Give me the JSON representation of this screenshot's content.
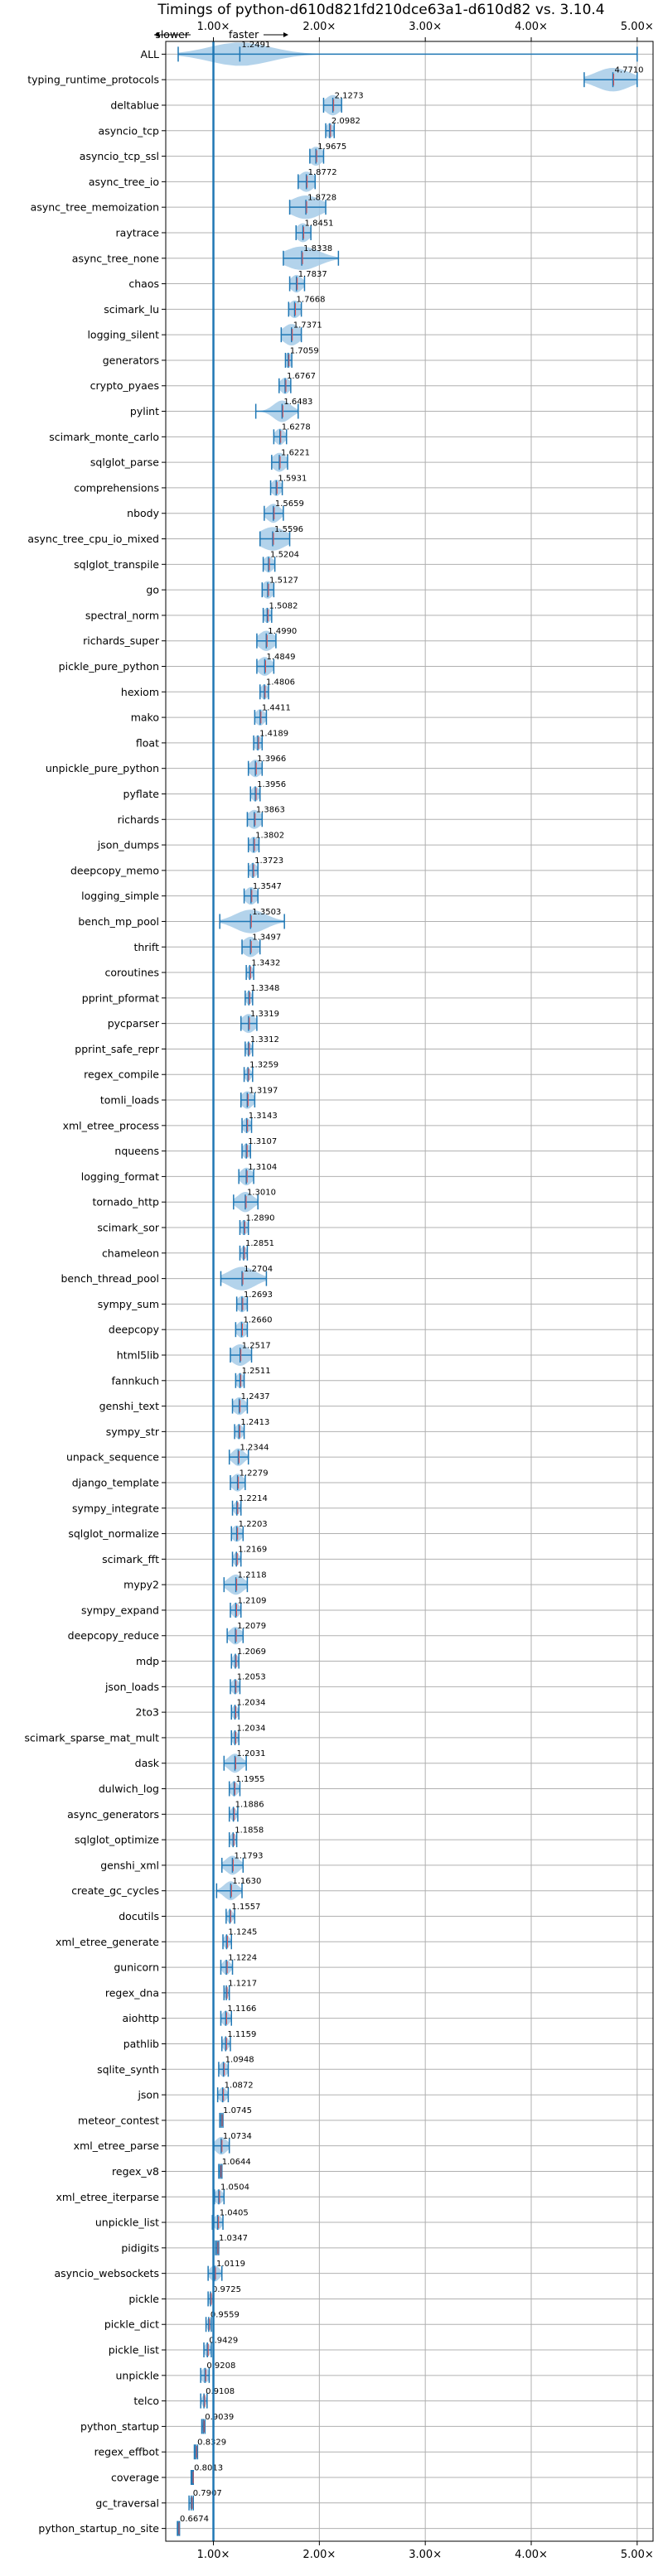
{
  "chart_data": {
    "type": "violin",
    "title": "Timings of python-d610d821fd210dce63a1-d610d82 vs. 3.10.4",
    "direction_labels": {
      "slower": "slower",
      "faster": "faster"
    },
    "xlim": [
      0.55,
      5.15
    ],
    "x_ticks": [
      1,
      2,
      3,
      4,
      5
    ],
    "x_tick_labels": [
      "1.00×",
      "2.00×",
      "3.00×",
      "4.00×",
      "5.00×"
    ],
    "x_tick_labels_top": [
      "1.00×",
      "2.00×",
      "3.00×",
      "4.00×",
      "5.00×"
    ],
    "reference_line": 1.0,
    "grid": true,
    "colors": {
      "violin": "#a6cbe8",
      "line": "#1f77b4",
      "median": "#e05252",
      "grid": "#b0b0b0"
    },
    "benchmarks": [
      {
        "name": "ALL",
        "label": "1.2491",
        "median": 1.2491,
        "min": 0.6674,
        "max": 5.0,
        "spread": 0.32
      },
      {
        "name": "typing_runtime_protocols",
        "label": "4.7710",
        "median": 4.771,
        "min": 4.5,
        "max": 5.0,
        "spread": 0.18
      },
      {
        "name": "deltablue",
        "label": "2.1273",
        "median": 2.1273,
        "min": 2.04,
        "max": 2.21,
        "spread": 0.08
      },
      {
        "name": "asyncio_tcp",
        "label": "2.0982",
        "median": 2.0982,
        "min": 2.06,
        "max": 2.14,
        "spread": 0.04
      },
      {
        "name": "asyncio_tcp_ssl",
        "label": "1.9675",
        "median": 1.9675,
        "min": 1.91,
        "max": 2.04,
        "spread": 0.07
      },
      {
        "name": "async_tree_io",
        "label": "1.8772",
        "median": 1.8772,
        "min": 1.8,
        "max": 1.96,
        "spread": 0.08
      },
      {
        "name": "async_tree_memoization",
        "label": "1.8728",
        "median": 1.8728,
        "min": 1.72,
        "max": 2.06,
        "spread": 0.16
      },
      {
        "name": "raytrace",
        "label": "1.8451",
        "median": 1.8451,
        "min": 1.78,
        "max": 1.92,
        "spread": 0.07
      },
      {
        "name": "async_tree_none",
        "label": "1.8338",
        "median": 1.8338,
        "min": 1.66,
        "max": 2.18,
        "spread": 0.18
      },
      {
        "name": "chaos",
        "label": "1.7837",
        "median": 1.7837,
        "min": 1.72,
        "max": 1.86,
        "spread": 0.06
      },
      {
        "name": "scimark_lu",
        "label": "1.7668",
        "median": 1.7668,
        "min": 1.71,
        "max": 1.83,
        "spread": 0.06
      },
      {
        "name": "logging_silent",
        "label": "1.7371",
        "median": 1.7371,
        "min": 1.64,
        "max": 1.83,
        "spread": 0.09
      },
      {
        "name": "generators",
        "label": "1.7059",
        "median": 1.7059,
        "min": 1.68,
        "max": 1.74,
        "spread": 0.04
      },
      {
        "name": "crypto_pyaes",
        "label": "1.6767",
        "median": 1.6767,
        "min": 1.62,
        "max": 1.73,
        "spread": 0.05
      },
      {
        "name": "pylint",
        "label": "1.6483",
        "median": 1.6483,
        "min": 1.4,
        "max": 1.8,
        "spread": 0.09
      },
      {
        "name": "scimark_monte_carlo",
        "label": "1.6278",
        "median": 1.6278,
        "min": 1.57,
        "max": 1.69,
        "spread": 0.05
      },
      {
        "name": "sqlglot_parse",
        "label": "1.6221",
        "median": 1.6221,
        "min": 1.55,
        "max": 1.7,
        "spread": 0.07
      },
      {
        "name": "comprehensions",
        "label": "1.5931",
        "median": 1.5931,
        "min": 1.54,
        "max": 1.65,
        "spread": 0.05
      },
      {
        "name": "nbody",
        "label": "1.5659",
        "median": 1.5659,
        "min": 1.48,
        "max": 1.66,
        "spread": 0.07
      },
      {
        "name": "async_tree_cpu_io_mixed",
        "label": "1.5596",
        "median": 1.5596,
        "min": 1.44,
        "max": 1.72,
        "spread": 0.14
      },
      {
        "name": "sqlglot_transpile",
        "label": "1.5204",
        "median": 1.5204,
        "min": 1.47,
        "max": 1.58,
        "spread": 0.05
      },
      {
        "name": "go",
        "label": "1.5127",
        "median": 1.5127,
        "min": 1.46,
        "max": 1.57,
        "spread": 0.06
      },
      {
        "name": "spectral_norm",
        "label": "1.5082",
        "median": 1.5082,
        "min": 1.47,
        "max": 1.55,
        "spread": 0.04
      },
      {
        "name": "richards_super",
        "label": "1.4990",
        "median": 1.499,
        "min": 1.41,
        "max": 1.59,
        "spread": 0.08
      },
      {
        "name": "pickle_pure_python",
        "label": "1.4849",
        "median": 1.4849,
        "min": 1.41,
        "max": 1.57,
        "spread": 0.07
      },
      {
        "name": "hexiom",
        "label": "1.4806",
        "median": 1.4806,
        "min": 1.44,
        "max": 1.52,
        "spread": 0.04
      },
      {
        "name": "mako",
        "label": "1.4411",
        "median": 1.4411,
        "min": 1.39,
        "max": 1.5,
        "spread": 0.05
      },
      {
        "name": "float",
        "label": "1.4189",
        "median": 1.4189,
        "min": 1.38,
        "max": 1.46,
        "spread": 0.04
      },
      {
        "name": "unpickle_pure_python",
        "label": "1.3966",
        "median": 1.3966,
        "min": 1.33,
        "max": 1.46,
        "spread": 0.06
      },
      {
        "name": "pyflate",
        "label": "1.3956",
        "median": 1.3956,
        "min": 1.35,
        "max": 1.44,
        "spread": 0.04
      },
      {
        "name": "richards",
        "label": "1.3863",
        "median": 1.3863,
        "min": 1.32,
        "max": 1.46,
        "spread": 0.07
      },
      {
        "name": "json_dumps",
        "label": "1.3802",
        "median": 1.3802,
        "min": 1.33,
        "max": 1.43,
        "spread": 0.05
      },
      {
        "name": "deepcopy_memo",
        "label": "1.3723",
        "median": 1.3723,
        "min": 1.33,
        "max": 1.42,
        "spread": 0.04
      },
      {
        "name": "logging_simple",
        "label": "1.3547",
        "median": 1.3547,
        "min": 1.29,
        "max": 1.42,
        "spread": 0.06
      },
      {
        "name": "bench_mp_pool",
        "label": "1.3503",
        "median": 1.3503,
        "min": 1.06,
        "max": 1.67,
        "spread": 0.16
      },
      {
        "name": "thrift",
        "label": "1.3497",
        "median": 1.3497,
        "min": 1.27,
        "max": 1.44,
        "spread": 0.08
      },
      {
        "name": "coroutines",
        "label": "1.3432",
        "median": 1.3432,
        "min": 1.31,
        "max": 1.38,
        "spread": 0.03
      },
      {
        "name": "pprint_pformat",
        "label": "1.3348",
        "median": 1.3348,
        "min": 1.3,
        "max": 1.37,
        "spread": 0.03
      },
      {
        "name": "pycparser",
        "label": "1.3319",
        "median": 1.3319,
        "min": 1.26,
        "max": 1.41,
        "spread": 0.07
      },
      {
        "name": "pprint_safe_repr",
        "label": "1.3312",
        "median": 1.3312,
        "min": 1.3,
        "max": 1.37,
        "spread": 0.03
      },
      {
        "name": "regex_compile",
        "label": "1.3259",
        "median": 1.3259,
        "min": 1.29,
        "max": 1.37,
        "spread": 0.03
      },
      {
        "name": "tomli_loads",
        "label": "1.3197",
        "median": 1.3197,
        "min": 1.26,
        "max": 1.39,
        "spread": 0.06
      },
      {
        "name": "xml_etree_process",
        "label": "1.3143",
        "median": 1.3143,
        "min": 1.27,
        "max": 1.36,
        "spread": 0.04
      },
      {
        "name": "nqueens",
        "label": "1.3107",
        "median": 1.3107,
        "min": 1.27,
        "max": 1.35,
        "spread": 0.04
      },
      {
        "name": "logging_format",
        "label": "1.3104",
        "median": 1.3104,
        "min": 1.24,
        "max": 1.38,
        "spread": 0.06
      },
      {
        "name": "tornado_http",
        "label": "1.3010",
        "median": 1.301,
        "min": 1.19,
        "max": 1.42,
        "spread": 0.08
      },
      {
        "name": "scimark_sor",
        "label": "1.2890",
        "median": 1.289,
        "min": 1.25,
        "max": 1.33,
        "spread": 0.04
      },
      {
        "name": "chameleon",
        "label": "1.2851",
        "median": 1.2851,
        "min": 1.25,
        "max": 1.32,
        "spread": 0.03
      },
      {
        "name": "bench_thread_pool",
        "label": "1.2704",
        "median": 1.2704,
        "min": 1.07,
        "max": 1.5,
        "spread": 0.14
      },
      {
        "name": "sympy_sum",
        "label": "1.2693",
        "median": 1.2693,
        "min": 1.22,
        "max": 1.32,
        "spread": 0.05
      },
      {
        "name": "deepcopy",
        "label": "1.2660",
        "median": 1.266,
        "min": 1.21,
        "max": 1.32,
        "spread": 0.05
      },
      {
        "name": "html5lib",
        "label": "1.2517",
        "median": 1.2517,
        "min": 1.16,
        "max": 1.36,
        "spread": 0.09
      },
      {
        "name": "fannkuch",
        "label": "1.2511",
        "median": 1.2511,
        "min": 1.21,
        "max": 1.29,
        "spread": 0.04
      },
      {
        "name": "genshi_text",
        "label": "1.2437",
        "median": 1.2437,
        "min": 1.18,
        "max": 1.32,
        "spread": 0.06
      },
      {
        "name": "sympy_str",
        "label": "1.2413",
        "median": 1.2413,
        "min": 1.2,
        "max": 1.29,
        "spread": 0.04
      },
      {
        "name": "unpack_sequence",
        "label": "1.2344",
        "median": 1.2344,
        "min": 1.15,
        "max": 1.33,
        "spread": 0.06
      },
      {
        "name": "django_template",
        "label": "1.2279",
        "median": 1.2279,
        "min": 1.16,
        "max": 1.3,
        "spread": 0.06
      },
      {
        "name": "sympy_integrate",
        "label": "1.2214",
        "median": 1.2214,
        "min": 1.18,
        "max": 1.26,
        "spread": 0.03
      },
      {
        "name": "sqlglot_normalize",
        "label": "1.2203",
        "median": 1.2203,
        "min": 1.17,
        "max": 1.28,
        "spread": 0.05
      },
      {
        "name": "scimark_fft",
        "label": "1.2169",
        "median": 1.2169,
        "min": 1.18,
        "max": 1.26,
        "spread": 0.03
      },
      {
        "name": "mypy2",
        "label": "1.2118",
        "median": 1.2118,
        "min": 1.1,
        "max": 1.32,
        "spread": 0.08
      },
      {
        "name": "sympy_expand",
        "label": "1.2109",
        "median": 1.2109,
        "min": 1.16,
        "max": 1.26,
        "spread": 0.04
      },
      {
        "name": "deepcopy_reduce",
        "label": "1.2079",
        "median": 1.2079,
        "min": 1.13,
        "max": 1.28,
        "spread": 0.06
      },
      {
        "name": "mdp",
        "label": "1.2069",
        "median": 1.2069,
        "min": 1.17,
        "max": 1.24,
        "spread": 0.03
      },
      {
        "name": "json_loads",
        "label": "1.2053",
        "median": 1.2053,
        "min": 1.16,
        "max": 1.25,
        "spread": 0.04
      },
      {
        "name": "2to3",
        "label": "1.2034",
        "median": 1.2034,
        "min": 1.17,
        "max": 1.24,
        "spread": 0.03
      },
      {
        "name": "scimark_sparse_mat_mult",
        "label": "1.2034",
        "median": 1.2034,
        "min": 1.17,
        "max": 1.24,
        "spread": 0.03
      },
      {
        "name": "dask",
        "label": "1.2031",
        "median": 1.2031,
        "min": 1.1,
        "max": 1.31,
        "spread": 0.07
      },
      {
        "name": "dulwich_log",
        "label": "1.1955",
        "median": 1.1955,
        "min": 1.15,
        "max": 1.25,
        "spread": 0.04
      },
      {
        "name": "async_generators",
        "label": "1.1886",
        "median": 1.1886,
        "min": 1.15,
        "max": 1.23,
        "spread": 0.03
      },
      {
        "name": "sqlglot_optimize",
        "label": "1.1858",
        "median": 1.1858,
        "min": 1.15,
        "max": 1.22,
        "spread": 0.03
      },
      {
        "name": "genshi_xml",
        "label": "1.1793",
        "median": 1.1793,
        "min": 1.08,
        "max": 1.28,
        "spread": 0.07
      },
      {
        "name": "create_gc_cycles",
        "label": "1.1630",
        "median": 1.163,
        "min": 1.03,
        "max": 1.27,
        "spread": 0.07
      },
      {
        "name": "docutils",
        "label": "1.1557",
        "median": 1.1557,
        "min": 1.12,
        "max": 1.2,
        "spread": 0.03
      },
      {
        "name": "xml_etree_generate",
        "label": "1.1245",
        "median": 1.1245,
        "min": 1.09,
        "max": 1.17,
        "spread": 0.03
      },
      {
        "name": "gunicorn",
        "label": "1.1224",
        "median": 1.1224,
        "min": 1.07,
        "max": 1.18,
        "spread": 0.04
      },
      {
        "name": "regex_dna",
        "label": "1.1217",
        "median": 1.1217,
        "min": 1.1,
        "max": 1.15,
        "spread": 0.02
      },
      {
        "name": "aiohttp",
        "label": "1.1166",
        "median": 1.1166,
        "min": 1.07,
        "max": 1.17,
        "spread": 0.04
      },
      {
        "name": "pathlib",
        "label": "1.1159",
        "median": 1.1159,
        "min": 1.08,
        "max": 1.16,
        "spread": 0.03
      },
      {
        "name": "sqlite_synth",
        "label": "1.0948",
        "median": 1.0948,
        "min": 1.05,
        "max": 1.14,
        "spread": 0.04
      },
      {
        "name": "json",
        "label": "1.0872",
        "median": 1.0872,
        "min": 1.04,
        "max": 1.14,
        "spread": 0.04
      },
      {
        "name": "meteor_contest",
        "label": "1.0745",
        "median": 1.0745,
        "min": 1.06,
        "max": 1.09,
        "spread": 0.02
      },
      {
        "name": "xml_etree_parse",
        "label": "1.0734",
        "median": 1.0734,
        "min": 1.0,
        "max": 1.15,
        "spread": 0.06
      },
      {
        "name": "regex_v8",
        "label": "1.0644",
        "median": 1.0644,
        "min": 1.05,
        "max": 1.08,
        "spread": 0.02
      },
      {
        "name": "xml_etree_iterparse",
        "label": "1.0504",
        "median": 1.0504,
        "min": 1.01,
        "max": 1.1,
        "spread": 0.04
      },
      {
        "name": "unpickle_list",
        "label": "1.0405",
        "median": 1.0405,
        "min": 0.99,
        "max": 1.09,
        "spread": 0.04
      },
      {
        "name": "pidigits",
        "label": "1.0347",
        "median": 1.0347,
        "min": 1.02,
        "max": 1.05,
        "spread": 0.02
      },
      {
        "name": "asyncio_websockets",
        "label": "1.0119",
        "median": 1.0119,
        "min": 0.95,
        "max": 1.08,
        "spread": 0.05
      },
      {
        "name": "pickle",
        "label": "0.9725",
        "median": 0.9725,
        "min": 0.95,
        "max": 1.0,
        "spread": 0.02
      },
      {
        "name": "pickle_dict",
        "label": "0.9559",
        "median": 0.9559,
        "min": 0.93,
        "max": 0.98,
        "spread": 0.02
      },
      {
        "name": "pickle_list",
        "label": "0.9429",
        "median": 0.9429,
        "min": 0.91,
        "max": 0.98,
        "spread": 0.03
      },
      {
        "name": "unpickle",
        "label": "0.9208",
        "median": 0.9208,
        "min": 0.88,
        "max": 0.96,
        "spread": 0.04
      },
      {
        "name": "telco",
        "label": "0.9108",
        "median": 0.9108,
        "min": 0.88,
        "max": 0.94,
        "spread": 0.02
      },
      {
        "name": "python_startup",
        "label": "0.9039",
        "median": 0.9039,
        "min": 0.89,
        "max": 0.92,
        "spread": 0.01
      },
      {
        "name": "regex_effbot",
        "label": "0.8329",
        "median": 0.8329,
        "min": 0.82,
        "max": 0.85,
        "spread": 0.015
      },
      {
        "name": "coverage",
        "label": "0.8013",
        "median": 0.8013,
        "min": 0.79,
        "max": 0.81,
        "spread": 0.01
      },
      {
        "name": "gc_traversal",
        "label": "0.7907",
        "median": 0.7907,
        "min": 0.77,
        "max": 0.81,
        "spread": 0.02
      },
      {
        "name": "python_startup_no_site",
        "label": "0.6674",
        "median": 0.6674,
        "min": 0.66,
        "max": 0.68,
        "spread": 0.01
      }
    ]
  }
}
